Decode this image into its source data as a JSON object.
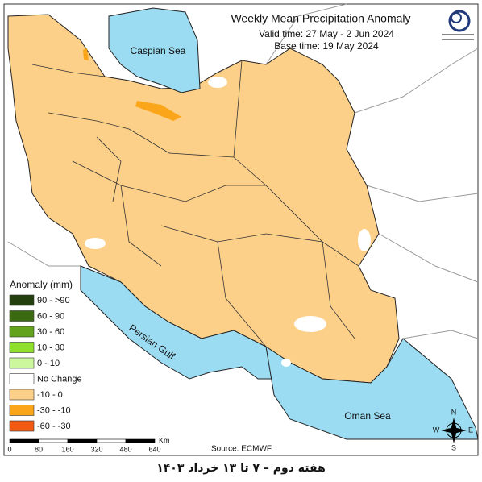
{
  "title": "Weekly Mean Precipitation Anomaly",
  "valid_time": "Valid time: 27 May - 2 Jun 2024",
  "base_time": "Base time: 19 May 2024",
  "legend": {
    "title": "Anomaly (mm)",
    "items": [
      {
        "label": "90 - >90",
        "color": "#243f0e"
      },
      {
        "label": "60 - 90",
        "color": "#3c6a12"
      },
      {
        "label": "30 - 60",
        "color": "#62a21c"
      },
      {
        "label": "10 - 30",
        "color": "#8ee02a"
      },
      {
        "label": "0 - 10",
        "color": "#ccf79c"
      },
      {
        "label": "No Change",
        "color": "#ffffff"
      },
      {
        "label": "-10 - 0",
        "color": "#fdd08a"
      },
      {
        "label": "-30 - -10",
        "color": "#fba51a"
      },
      {
        "label": "-60 - -30",
        "color": "#f25a12"
      }
    ]
  },
  "seas": {
    "caspian": "Caspian Sea",
    "persian_gulf": "Persian Gulf",
    "oman": "Oman Sea"
  },
  "scale": {
    "unit": "Km",
    "ticks": [
      "0",
      "80",
      "160",
      "320",
      "480",
      "640"
    ]
  },
  "compass": {
    "n": "N",
    "e": "E",
    "s": "S",
    "w": "W"
  },
  "source": "Source: ECMWF",
  "caption": "هفته دوم – ۷ تا ۱۳ خرداد ۱۴۰۳"
}
